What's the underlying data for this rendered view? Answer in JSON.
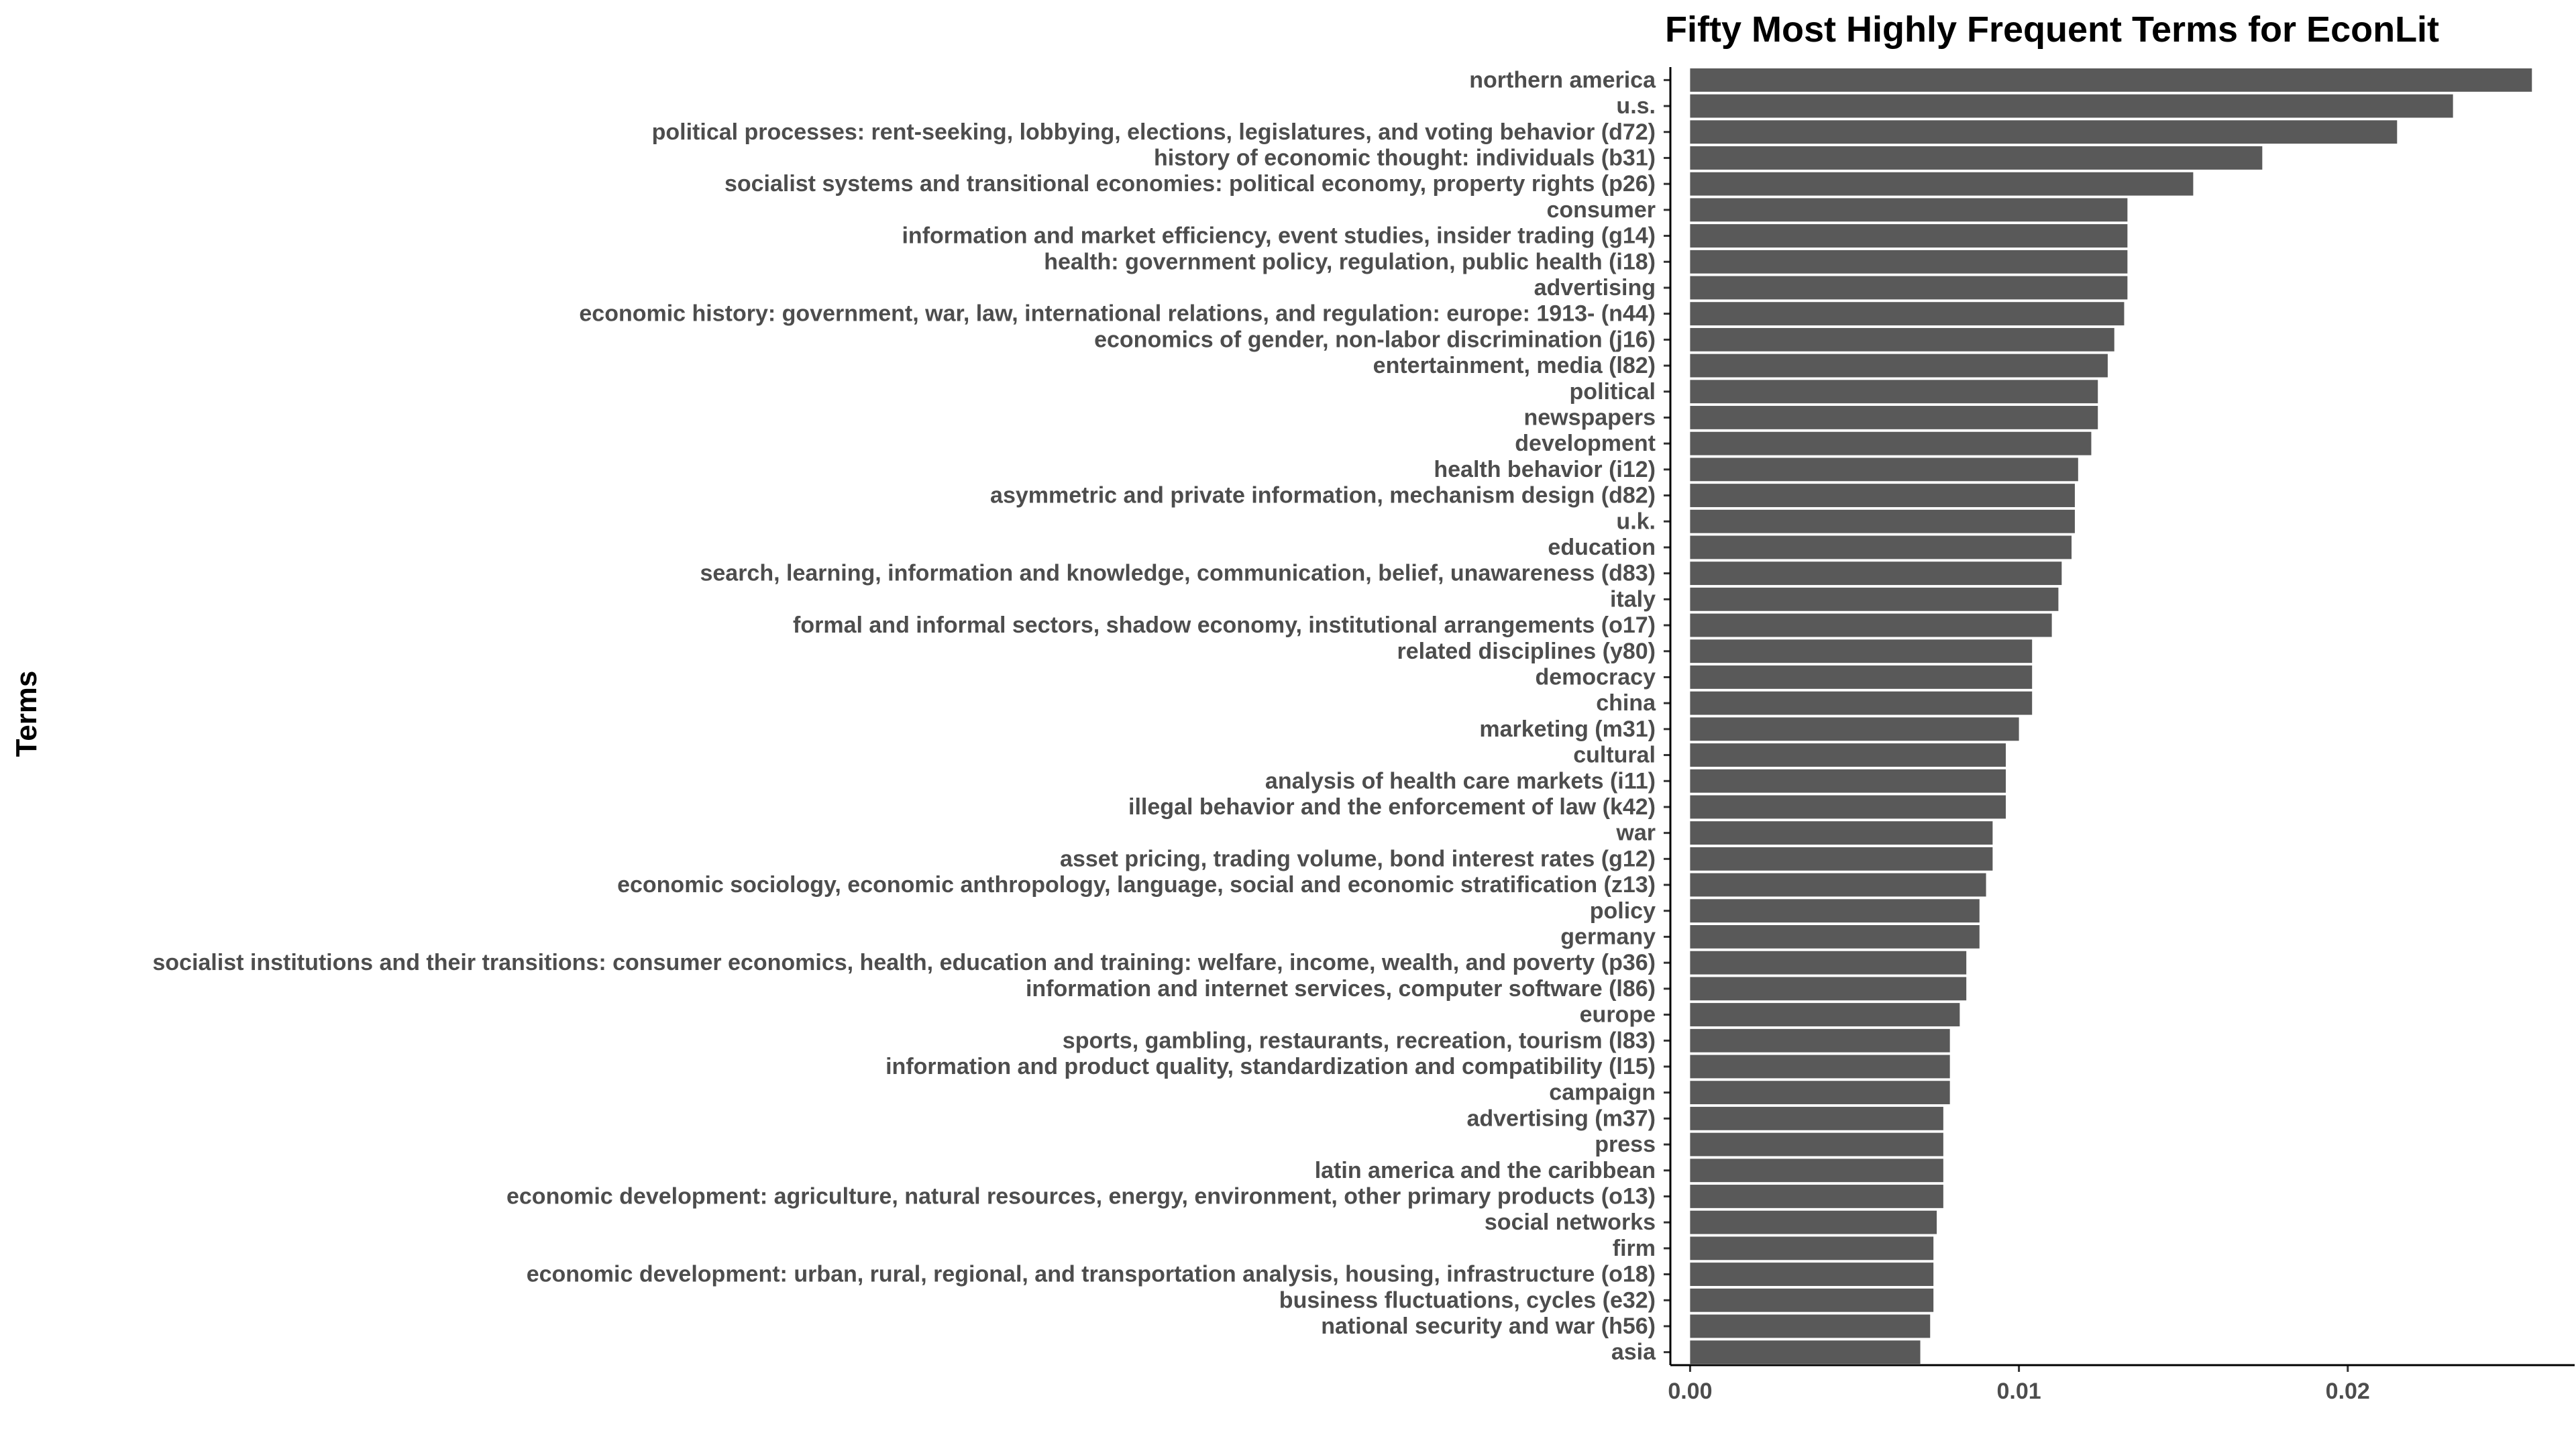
{
  "chart_data": {
    "type": "bar",
    "orientation": "horizontal",
    "title": "Fifty Most Highly Frequent Terms for EconLit",
    "xlabel": "",
    "ylabel": "Terms",
    "xlim": [
      -0.0006,
      0.0269
    ],
    "xticks": [
      "0.00",
      "0.01",
      "0.02"
    ],
    "xtick_values": [
      0.0,
      0.01,
      0.02
    ],
    "grid": false,
    "bar_color": "#595959",
    "categories": [
      "northern america",
      "u.s.",
      "political processes: rent-seeking, lobbying, elections, legislatures, and voting behavior (d72)",
      "history of economic thought: individuals (b31)",
      "socialist systems and transitional economies: political economy, property rights (p26)",
      "consumer",
      "information and market efficiency, event studies, insider trading (g14)",
      "health: government policy, regulation, public health (i18)",
      "advertising",
      "economic history: government, war, law, international relations, and regulation: europe: 1913- (n44)",
      "economics of gender, non-labor discrimination (j16)",
      "entertainment, media (l82)",
      "political",
      "newspapers",
      "development",
      "health behavior (i12)",
      "asymmetric and private information, mechanism design (d82)",
      "u.k.",
      "education",
      "search, learning, information and knowledge, communication, belief, unawareness (d83)",
      "italy",
      "formal and informal sectors, shadow economy, institutional arrangements (o17)",
      "related disciplines (y80)",
      "democracy",
      "china",
      "marketing (m31)",
      "cultural",
      "analysis of health care markets (i11)",
      "illegal behavior and the enforcement of law (k42)",
      "war",
      "asset pricing, trading volume, bond interest rates (g12)",
      "economic sociology, economic anthropology, language, social and economic stratification (z13)",
      "policy",
      "germany",
      "socialist institutions and their transitions: consumer economics, health, education and training: welfare, income, wealth, and poverty (p36)",
      "information and internet services, computer software (l86)",
      "europe",
      "sports, gambling, restaurants, recreation, tourism (l83)",
      "information and product quality, standardization and compatibility (l15)",
      "campaign",
      "advertising (m37)",
      "press",
      "latin america and the caribbean",
      "economic development: agriculture, natural resources, energy, environment, other primary products (o13)",
      "social networks",
      "firm",
      "economic development: urban, rural, regional, and transportation analysis, housing, infrastructure (o18)",
      "business fluctuations, cycles (e32)",
      "national security and war (h56)",
      "asia"
    ],
    "values": [
      0.0256,
      0.0232,
      0.0215,
      0.0174,
      0.0153,
      0.0133,
      0.0133,
      0.0133,
      0.0133,
      0.0132,
      0.0129,
      0.0127,
      0.0124,
      0.0124,
      0.0122,
      0.0118,
      0.0117,
      0.0117,
      0.0116,
      0.0113,
      0.0112,
      0.011,
      0.0104,
      0.0104,
      0.0104,
      0.01,
      0.0096,
      0.0096,
      0.0096,
      0.0092,
      0.0092,
      0.009,
      0.0088,
      0.0088,
      0.0084,
      0.0084,
      0.0082,
      0.0079,
      0.0079,
      0.0079,
      0.0077,
      0.0077,
      0.0077,
      0.0077,
      0.0075,
      0.0074,
      0.0074,
      0.0074,
      0.0073,
      0.007
    ]
  }
}
